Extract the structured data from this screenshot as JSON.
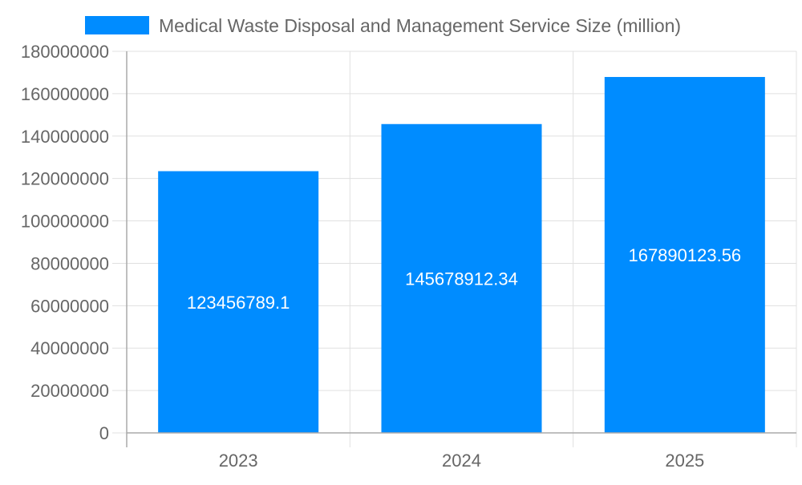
{
  "chart_data": {
    "type": "bar",
    "categories": [
      "2023",
      "2024",
      "2025"
    ],
    "series": [
      {
        "name": "Medical Waste Disposal and Management Service Size (million)",
        "values": [
          123456789.1,
          145678912.34,
          167890123.56
        ],
        "labels": [
          "123456789.1",
          "145678912.34",
          "167890123.56"
        ],
        "color": "#008cff"
      }
    ],
    "ylim": [
      0,
      180000000
    ],
    "yticks": [
      "0",
      "20000000",
      "40000000",
      "60000000",
      "80000000",
      "100000000",
      "120000000",
      "140000000",
      "160000000",
      "180000000"
    ],
    "grid": true,
    "legend": "top"
  }
}
